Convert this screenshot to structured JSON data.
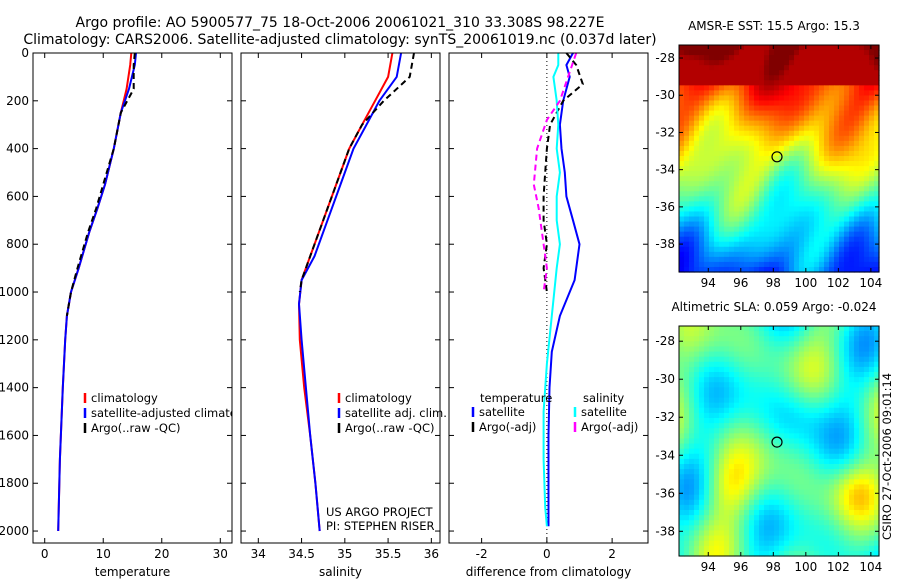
{
  "header": {
    "line1": "Argo profile: AO 5900577_75 18-Oct-2006 20061021_310 33.308S 98.227E",
    "line2": "Climatology: CARS2006. Satellite-adjusted climatology: synTS_20061019.nc (0.037d later)"
  },
  "credit": {
    "line1": "US ARGO PROJECT",
    "line2": "PI: STEPHEN RISER"
  },
  "side_label": "CSIRO 27-Oct-2006 09:01:14",
  "colors": {
    "climatology": "#ff0000",
    "satellite": "#0000ff",
    "argo": "#000000",
    "sal_satellite": "#00ffff",
    "sal_argo": "#ff00ff"
  },
  "chart_data": [
    {
      "type": "line",
      "title": "",
      "xlabel": "temperature",
      "ylabel": "",
      "xlim": [
        -2,
        32
      ],
      "ylim": [
        2050,
        0
      ],
      "xticks": [
        "0",
        "10",
        "20",
        "30"
      ],
      "xtick_values": [
        0,
        10,
        20,
        30
      ],
      "yticks": [
        "0",
        "200",
        "400",
        "600",
        "800",
        "1000",
        "1200",
        "1400",
        "1600",
        "1800",
        "2000"
      ],
      "ytick_values": [
        0,
        200,
        400,
        600,
        800,
        1000,
        1200,
        1400,
        1600,
        1800,
        2000
      ],
      "legend": [
        "climatology",
        "satellite-adjusted climatology",
        "Argo(..raw -QC)"
      ],
      "series": [
        {
          "name": "climatology",
          "color": "#ff0000",
          "dash": "",
          "x": [
            14.8,
            14.6,
            14.0,
            13.0,
            11.8,
            10.3,
            9.0,
            7.6,
            5.8,
            4.5,
            3.8,
            3.5,
            3.1,
            2.6,
            2.3
          ],
          "y": [
            0,
            50,
            150,
            250,
            400,
            550,
            650,
            750,
            900,
            1000,
            1100,
            1200,
            1400,
            1700,
            2000
          ]
        },
        {
          "name": "satellite-adjusted climatology",
          "color": "#0000ff",
          "dash": "",
          "x": [
            15.6,
            15.4,
            14.4,
            13.0,
            11.8,
            10.3,
            9.0,
            7.6,
            5.8,
            4.5,
            3.8,
            3.5,
            3.1,
            2.6,
            2.3
          ],
          "y": [
            0,
            50,
            150,
            250,
            400,
            550,
            650,
            750,
            900,
            1000,
            1100,
            1200,
            1400,
            1700,
            2000
          ]
        },
        {
          "name": "Argo(..raw -QC)",
          "color": "#000000",
          "dash": "6,4",
          "x": [
            15.4,
            15.2,
            15.2,
            13.0,
            11.8,
            10.0,
            8.8,
            7.4,
            5.6,
            4.5,
            4.2,
            3.8
          ],
          "y": [
            0,
            50,
            150,
            250,
            400,
            550,
            650,
            750,
            900,
            1000,
            1040,
            1100
          ]
        }
      ]
    },
    {
      "type": "line",
      "title": "",
      "xlabel": "salinity",
      "ylabel": "",
      "xlim": [
        33.8,
        36.1
      ],
      "ylim": [
        2050,
        0
      ],
      "xticks": [
        "34",
        "34.5",
        "35",
        "35.5",
        "36"
      ],
      "xtick_values": [
        34,
        34.5,
        35,
        35.5,
        36
      ],
      "legend": [
        "climatology",
        "satellite adj. clim.",
        "Argo(..raw -QC)"
      ],
      "series": [
        {
          "name": "climatology",
          "color": "#ff0000",
          "dash": "",
          "x": [
            35.55,
            35.5,
            35.35,
            35.2,
            35.05,
            34.9,
            34.75,
            34.6,
            34.5,
            34.47,
            34.48,
            34.53,
            34.6,
            34.66,
            34.71
          ],
          "y": [
            0,
            100,
            200,
            300,
            400,
            550,
            700,
            850,
            950,
            1050,
            1200,
            1400,
            1600,
            1800,
            2000
          ]
        },
        {
          "name": "satellite adj. clim.",
          "color": "#0000ff",
          "dash": "",
          "x": [
            35.65,
            35.6,
            35.4,
            35.25,
            35.1,
            34.95,
            34.8,
            34.65,
            34.5,
            34.47,
            34.5,
            34.55,
            34.6,
            34.66,
            34.71
          ],
          "y": [
            0,
            100,
            200,
            300,
            400,
            550,
            700,
            850,
            950,
            1050,
            1200,
            1400,
            1600,
            1800,
            2000
          ]
        },
        {
          "name": "Argo(..raw -QC)",
          "color": "#000000",
          "dash": "6,4",
          "x": [
            35.8,
            35.75,
            35.45,
            35.2,
            35.05,
            34.9,
            34.75,
            34.6,
            34.5,
            34.48
          ],
          "y": [
            0,
            100,
            200,
            300,
            400,
            550,
            700,
            850,
            950,
            1000
          ]
        }
      ]
    },
    {
      "type": "line",
      "title": "",
      "xlabel": "difference from climatology",
      "ylabel": "",
      "xlim": [
        -3,
        3.1
      ],
      "ylim": [
        2050,
        0
      ],
      "xticks": [
        "-2",
        "0",
        "2"
      ],
      "xtick_values": [
        -2,
        0,
        2
      ],
      "legend_titles": [
        "temperature",
        "salinity"
      ],
      "legend": [
        "satellite",
        "Argo(-adj)",
        "satellite",
        "Argo(-adj)"
      ],
      "series": [
        {
          "name": "temperature satellite",
          "color": "#0000ff",
          "dash": "",
          "x": [
            0.8,
            0.6,
            0.7,
            0.5,
            0.4,
            0.45,
            0.55,
            0.6,
            0.8,
            1.0,
            0.85,
            0.4,
            0.15,
            0.08,
            0.05,
            0.05,
            0.05
          ],
          "y": [
            0,
            50,
            100,
            200,
            300,
            400,
            500,
            600,
            700,
            800,
            950,
            1100,
            1250,
            1400,
            1600,
            1800,
            1980
          ]
        },
        {
          "name": "temperature Argo(-adj)",
          "color": "#000000",
          "dash": "6,4",
          "x": [
            0.6,
            0.9,
            1.1,
            0.5,
            0.1,
            0.0,
            -0.05,
            -0.1,
            -0.1,
            0.0,
            -0.1,
            0.0
          ],
          "y": [
            0,
            50,
            130,
            200,
            300,
            400,
            500,
            600,
            700,
            800,
            900,
            1000
          ]
        },
        {
          "name": "salinity satellite",
          "color": "#00ffff",
          "dash": "",
          "x": [
            0.35,
            0.35,
            0.2,
            0.3,
            0.35,
            0.3,
            0.4,
            0.3,
            0.3,
            0.4,
            0.3,
            0.15,
            0.0,
            -0.1,
            -0.1,
            -0.05,
            0.0
          ],
          "y": [
            0,
            50,
            100,
            200,
            300,
            400,
            500,
            600,
            700,
            800,
            900,
            1100,
            1300,
            1500,
            1700,
            1900,
            1980
          ]
        },
        {
          "name": "salinity Argo(-adj)",
          "color": "#ff00ff",
          "dash": "6,4",
          "x": [
            0.9,
            0.7,
            0.4,
            0.0,
            -0.3,
            -0.4,
            -0.25,
            -0.2,
            -0.1,
            0.0,
            -0.1
          ],
          "y": [
            0,
            80,
            200,
            280,
            400,
            550,
            650,
            700,
            800,
            900,
            1000
          ]
        }
      ]
    },
    {
      "type": "heatmap",
      "title": "AMSR-E SST: 15.5 Argo: 15.3",
      "xlim": [
        92.2,
        104.5
      ],
      "ylim": [
        -39.5,
        -27.3
      ],
      "xticks": [
        "94",
        "96",
        "98",
        "100",
        "102",
        "104"
      ],
      "xtick_values": [
        94,
        96,
        98,
        100,
        102,
        104
      ],
      "yticks": [
        "-28",
        "-30",
        "-32",
        "-34",
        "-36",
        "-38"
      ],
      "ytick_values": [
        -28,
        -30,
        -32,
        -34,
        -36,
        -38
      ],
      "marker": {
        "lon": 98.227,
        "lat": -33.308
      }
    },
    {
      "type": "heatmap",
      "title": "Altimetric SLA: 0.059 Argo: -0.024",
      "xlim": [
        92.2,
        104.5
      ],
      "ylim": [
        -39.3,
        -27.2
      ],
      "xticks": [
        "94",
        "96",
        "98",
        "100",
        "102",
        "104"
      ],
      "xtick_values": [
        94,
        96,
        98,
        100,
        102,
        104
      ],
      "yticks": [
        "-28",
        "-30",
        "-32",
        "-34",
        "-36",
        "-38"
      ],
      "ytick_values": [
        -28,
        -30,
        -32,
        -34,
        -36,
        -38
      ],
      "marker": {
        "lon": 98.227,
        "lat": -33.308
      }
    }
  ]
}
